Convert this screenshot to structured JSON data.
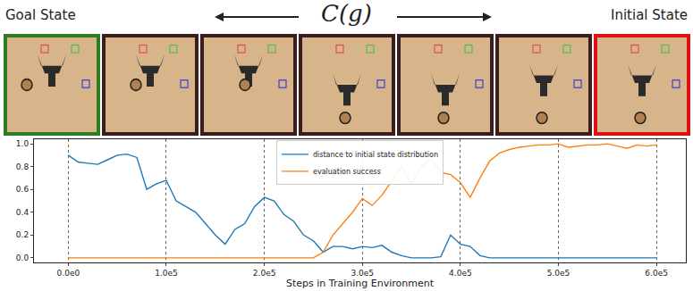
{
  "header": {
    "goal_label": "Goal State",
    "center_label": "C(g)",
    "initial_label": "Initial State"
  },
  "chart_data": {
    "type": "line",
    "xlabel": "Steps in Training Environment",
    "x": [
      0,
      10000,
      20000,
      30000,
      40000,
      50000,
      60000,
      70000,
      80000,
      90000,
      100000,
      110000,
      120000,
      130000,
      140000,
      150000,
      160000,
      170000,
      180000,
      190000,
      200000,
      210000,
      220000,
      230000,
      240000,
      250000,
      260000,
      270000,
      280000,
      290000,
      300000,
      310000,
      320000,
      330000,
      340000,
      350000,
      360000,
      370000,
      380000,
      390000,
      400000,
      410000,
      420000,
      430000,
      440000,
      450000,
      460000,
      470000,
      480000,
      490000,
      500000,
      510000,
      520000,
      530000,
      540000,
      550000,
      560000,
      570000,
      580000,
      590000,
      600000
    ],
    "series": [
      {
        "name": "distance to initial state distribution",
        "color": "#1f77b4",
        "values": [
          0.9,
          0.84,
          0.83,
          0.82,
          0.86,
          0.9,
          0.91,
          0.88,
          0.6,
          0.65,
          0.68,
          0.5,
          0.45,
          0.4,
          0.3,
          0.2,
          0.12,
          0.25,
          0.3,
          0.45,
          0.53,
          0.5,
          0.38,
          0.32,
          0.2,
          0.15,
          0.05,
          0.1,
          0.1,
          0.08,
          0.1,
          0.09,
          0.11,
          0.05,
          0.02,
          0.0,
          0.0,
          0.0,
          0.01,
          0.2,
          0.12,
          0.1,
          0.02,
          0,
          0,
          0,
          0,
          0,
          0,
          0,
          0,
          0,
          0,
          0,
          0,
          0,
          0,
          0,
          0,
          0,
          0
        ]
      },
      {
        "name": "evaluation success",
        "color": "#ff7f0e",
        "values": [
          0,
          0,
          0,
          0,
          0,
          0,
          0,
          0,
          0,
          0,
          0,
          0,
          0,
          0,
          0,
          0,
          0,
          0,
          0,
          0,
          0,
          0,
          0,
          0,
          0,
          0,
          0.05,
          0.2,
          0.3,
          0.4,
          0.52,
          0.46,
          0.55,
          0.68,
          0.8,
          0.65,
          0.8,
          0.87,
          0.75,
          0.73,
          0.66,
          0.53,
          0.7,
          0.85,
          0.92,
          0.95,
          0.97,
          0.98,
          0.99,
          0.99,
          1.0,
          0.97,
          0.98,
          0.99,
          0.99,
          1.0,
          0.98,
          0.96,
          0.99,
          0.98,
          0.99
        ]
      }
    ],
    "xlim": [
      -35000,
      630000
    ],
    "xticks": [
      {
        "value": 0,
        "label": "0.0e0"
      },
      {
        "value": 100000,
        "label": "1.0e5"
      },
      {
        "value": 200000,
        "label": "2.0e5"
      },
      {
        "value": 300000,
        "label": "3.0e5"
      },
      {
        "value": 400000,
        "label": "4.0e5"
      },
      {
        "value": 500000,
        "label": "5.0e5"
      },
      {
        "value": 600000,
        "label": "6.0e5"
      }
    ],
    "ylim": [
      -0.04,
      1.04
    ],
    "yticks": [
      {
        "value": 0,
        "label": "0.0"
      },
      0.2,
      0.4,
      0.6,
      0.8,
      {
        "value": 1,
        "label": "1.0"
      }
    ],
    "grid": true,
    "legend": "top"
  }
}
